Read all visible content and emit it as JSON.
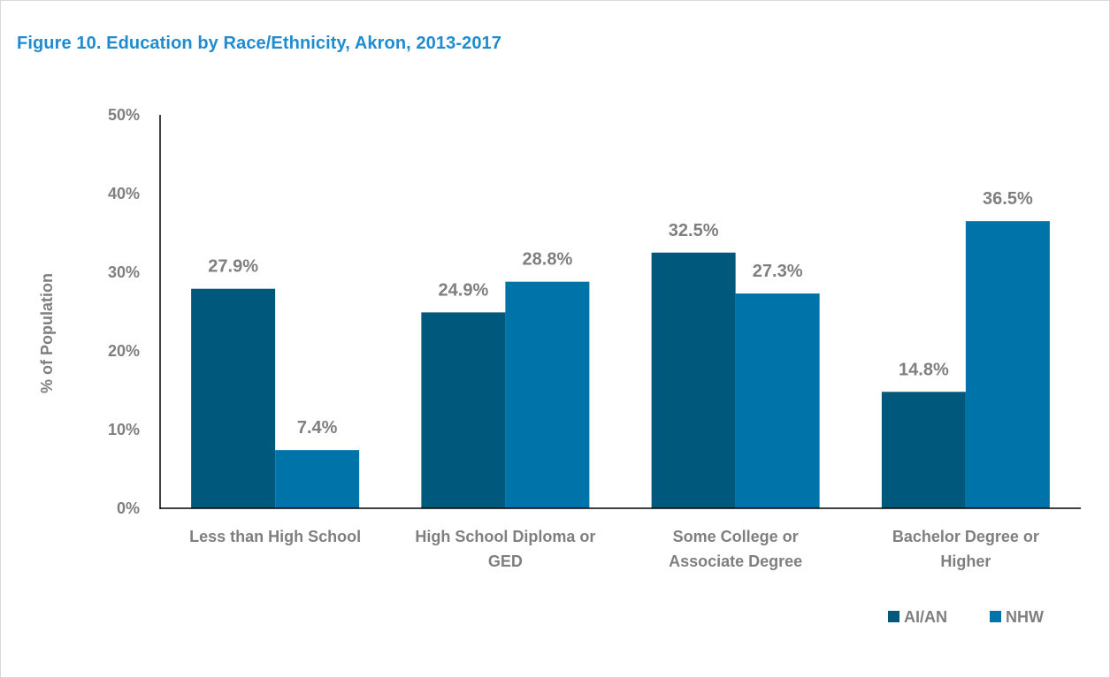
{
  "title": "Figure 10. Education by Race/Ethnicity, Akron, 2013-2017",
  "chart_data": {
    "type": "bar",
    "title": "Figure 10. Education by Race/Ethnicity, Akron, 2013-2017",
    "xlabel": "",
    "ylabel": "% of Population",
    "ylim": [
      0,
      50
    ],
    "yticks": [
      "0%",
      "10%",
      "20%",
      "30%",
      "40%",
      "50%"
    ],
    "categories": [
      [
        "Less than High School"
      ],
      [
        "High School Diploma or",
        "GED"
      ],
      [
        "Some College or",
        "Associate Degree"
      ],
      [
        "Bachelor Degree or",
        "Higher"
      ]
    ],
    "series": [
      {
        "name": "AI/AN",
        "color": "#00587c",
        "values": [
          27.9,
          24.9,
          32.5,
          14.8
        ],
        "labels": [
          "27.9%",
          "24.9%",
          "32.5%",
          "14.8%"
        ]
      },
      {
        "name": "NHW",
        "color": "#0073a8",
        "values": [
          7.4,
          28.8,
          27.3,
          36.5
        ],
        "labels": [
          "7.4%",
          "28.8%",
          "27.3%",
          "36.5%"
        ]
      }
    ],
    "grid": false,
    "legend_position": "bottom-right"
  }
}
